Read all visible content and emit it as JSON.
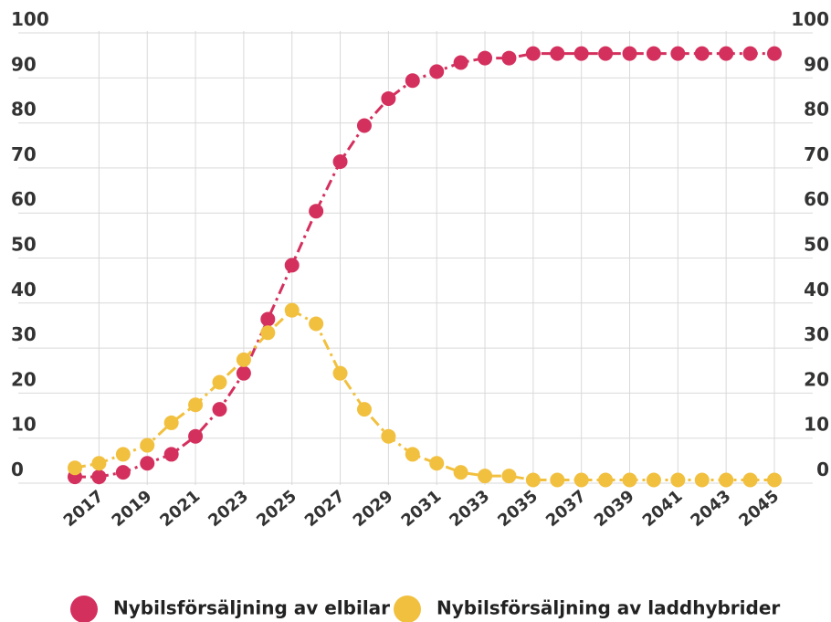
{
  "chart_data": {
    "type": "line",
    "x": [
      2016,
      2017,
      2018,
      2019,
      2020,
      2021,
      2022,
      2023,
      2024,
      2025,
      2026,
      2027,
      2028,
      2029,
      2030,
      2031,
      2032,
      2033,
      2034,
      2035,
      2036,
      2037,
      2038,
      2039,
      2040,
      2041,
      2042,
      2043,
      2044,
      2045
    ],
    "series": [
      {
        "name": "Nybilsförsäljning av elbilar",
        "color": "#d4305e",
        "values": [
          1,
          1,
          2,
          4,
          6,
          10,
          16,
          24,
          36,
          48,
          60,
          71,
          79,
          85,
          89,
          91,
          93,
          94,
          94,
          95,
          95,
          95,
          95,
          95,
          95,
          95,
          95,
          95,
          95,
          95
        ]
      },
      {
        "name": "Nybilsförsäljning av laddhybrider",
        "color": "#f2c03f",
        "values": [
          3,
          4,
          6,
          8,
          13,
          17,
          22,
          27,
          33,
          38,
          35,
          24,
          16,
          10,
          6,
          4,
          2,
          1.2,
          1.2,
          0.3,
          0.3,
          0.3,
          0.3,
          0.3,
          0.3,
          0.3,
          0.3,
          0.3,
          0.3,
          0.3
        ]
      }
    ],
    "xlim": [
      2016,
      2045
    ],
    "xticks": [
      2017,
      2019,
      2021,
      2023,
      2025,
      2027,
      2029,
      2031,
      2033,
      2035,
      2037,
      2039,
      2041,
      2043,
      2045
    ],
    "ylim": [
      0,
      100
    ],
    "yticks": [
      0,
      10,
      20,
      30,
      40,
      50,
      60,
      70,
      80,
      90,
      100
    ],
    "grid": true,
    "legend": "bottom"
  }
}
